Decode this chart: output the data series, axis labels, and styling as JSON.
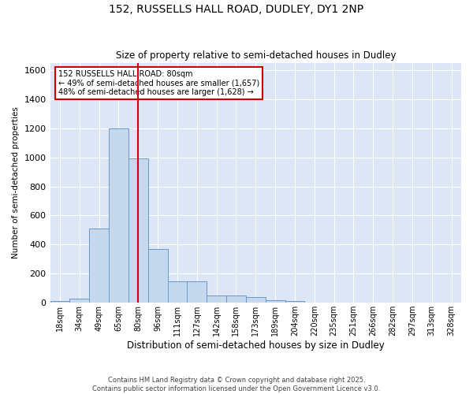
{
  "title1": "152, RUSSELLS HALL ROAD, DUDLEY, DY1 2NP",
  "title2": "Size of property relative to semi-detached houses in Dudley",
  "xlabel": "Distribution of semi-detached houses by size in Dudley",
  "ylabel": "Number of semi-detached properties",
  "categories": [
    "18sqm",
    "34sqm",
    "49sqm",
    "65sqm",
    "80sqm",
    "96sqm",
    "111sqm",
    "127sqm",
    "142sqm",
    "158sqm",
    "173sqm",
    "189sqm",
    "204sqm",
    "220sqm",
    "235sqm",
    "251sqm",
    "266sqm",
    "282sqm",
    "297sqm",
    "313sqm",
    "328sqm"
  ],
  "values": [
    10,
    30,
    510,
    1200,
    990,
    370,
    150,
    150,
    50,
    50,
    40,
    20,
    15,
    0,
    0,
    0,
    0,
    0,
    0,
    0,
    0
  ],
  "bar_color": "#c5d8ee",
  "bar_edge_color": "#6699cc",
  "vline_x_index": 4,
  "vline_color": "#cc0000",
  "annotation_text": "152 RUSSELLS HALL ROAD: 80sqm\n← 49% of semi-detached houses are smaller (1,657)\n48% of semi-detached houses are larger (1,628) →",
  "annotation_box_color": "#cc0000",
  "ylim": [
    0,
    1650
  ],
  "yticks": [
    0,
    200,
    400,
    600,
    800,
    1000,
    1200,
    1400,
    1600
  ],
  "background_color": "#dce6f5",
  "grid_color": "#c0cfe8",
  "footer": "Contains HM Land Registry data © Crown copyright and database right 2025.\nContains public sector information licensed under the Open Government Licence v3.0.",
  "figsize": [
    6.0,
    5.0
  ],
  "dpi": 100
}
